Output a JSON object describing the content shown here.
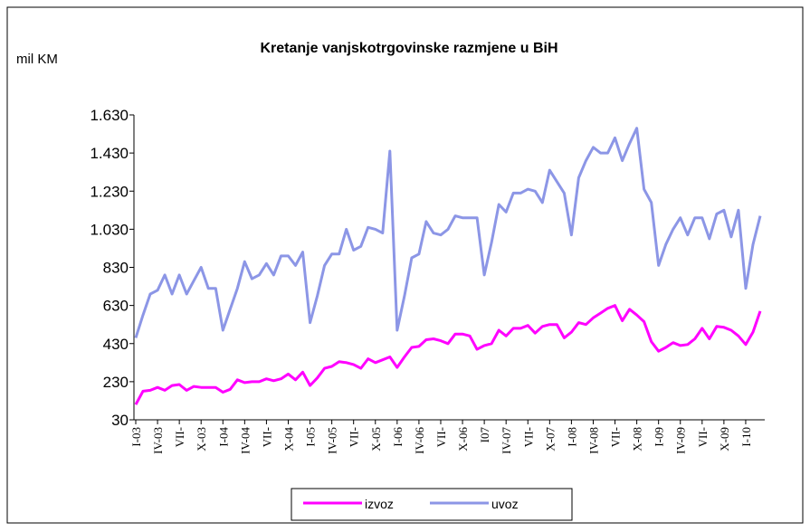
{
  "chart_data": {
    "type": "line",
    "title": "Kretanje vanjskotrgovinske razmjene u BiH",
    "y_label": "mil KM",
    "categories": [
      "I-03",
      null,
      null,
      "IV-03",
      null,
      null,
      "VII-",
      null,
      null,
      "X-03",
      null,
      null,
      "I-04",
      null,
      null,
      "IV-04",
      null,
      null,
      "VII-",
      null,
      null,
      "X-04",
      null,
      null,
      "I-05",
      null,
      null,
      "IV-05",
      null,
      null,
      "VII-",
      null,
      null,
      "X-05",
      null,
      null,
      "I-06",
      null,
      null,
      "IV-06",
      null,
      null,
      "VII-",
      null,
      null,
      "X-06",
      null,
      null,
      "I07",
      null,
      null,
      "IV-07",
      null,
      null,
      "VII-",
      null,
      null,
      "X-07",
      null,
      null,
      "I-08",
      null,
      null,
      "IV-08",
      null,
      null,
      "VII-",
      null,
      null,
      "X-08",
      null,
      null,
      "I-09",
      null,
      null,
      "IV-09",
      null,
      null,
      "VII-",
      null,
      null,
      "X-09",
      null,
      null,
      "I-10",
      null,
      null
    ],
    "series": [
      {
        "name": "izvoz",
        "color": "#ff00ff",
        "values": [
          110,
          180,
          185,
          200,
          185,
          210,
          215,
          185,
          205,
          200,
          200,
          200,
          175,
          190,
          240,
          225,
          230,
          230,
          245,
          235,
          245,
          270,
          240,
          280,
          210,
          250,
          300,
          310,
          335,
          330,
          320,
          300,
          350,
          330,
          345,
          360,
          305,
          360,
          410,
          415,
          450,
          455,
          445,
          430,
          480,
          480,
          470,
          400,
          420,
          430,
          500,
          470,
          510,
          510,
          525,
          485,
          520,
          530,
          530,
          460,
          490,
          540,
          530,
          565,
          590,
          615,
          630,
          550,
          610,
          580,
          545,
          440,
          390,
          410,
          435,
          420,
          425,
          455,
          510,
          455,
          520,
          515,
          500,
          470,
          425,
          490,
          600
        ]
      },
      {
        "name": "uvoz",
        "color": "#8c96e6",
        "values": [
          460,
          580,
          690,
          710,
          790,
          690,
          790,
          690,
          760,
          830,
          720,
          720,
          500,
          610,
          720,
          860,
          770,
          790,
          850,
          790,
          890,
          890,
          840,
          910,
          540,
          680,
          840,
          900,
          900,
          1030,
          920,
          940,
          1040,
          1030,
          1010,
          1440,
          500,
          680,
          880,
          900,
          1070,
          1010,
          1000,
          1030,
          1100,
          1090,
          1090,
          1090,
          790,
          960,
          1160,
          1120,
          1220,
          1220,
          1240,
          1230,
          1170,
          1340,
          1280,
          1220,
          1000,
          1300,
          1390,
          1460,
          1430,
          1430,
          1510,
          1390,
          1480,
          1560,
          1240,
          1170,
          840,
          950,
          1030,
          1090,
          1000,
          1090,
          1090,
          980,
          1110,
          1130,
          990,
          1130,
          720,
          950,
          1100
        ]
      }
    ],
    "ylim": [
      30,
      1630
    ],
    "yticks": [
      {
        "value": 30,
        "label": "30"
      },
      {
        "value": 230,
        "label": "230"
      },
      {
        "value": 430,
        "label": "430"
      },
      {
        "value": 630,
        "label": "630"
      },
      {
        "value": 830,
        "label": "830"
      },
      {
        "value": 1030,
        "label": "1.030"
      },
      {
        "value": 1230,
        "label": "1.230"
      },
      {
        "value": 1430,
        "label": "1.430"
      },
      {
        "value": 1630,
        "label": "1.630"
      }
    ],
    "legend": "bottom"
  }
}
